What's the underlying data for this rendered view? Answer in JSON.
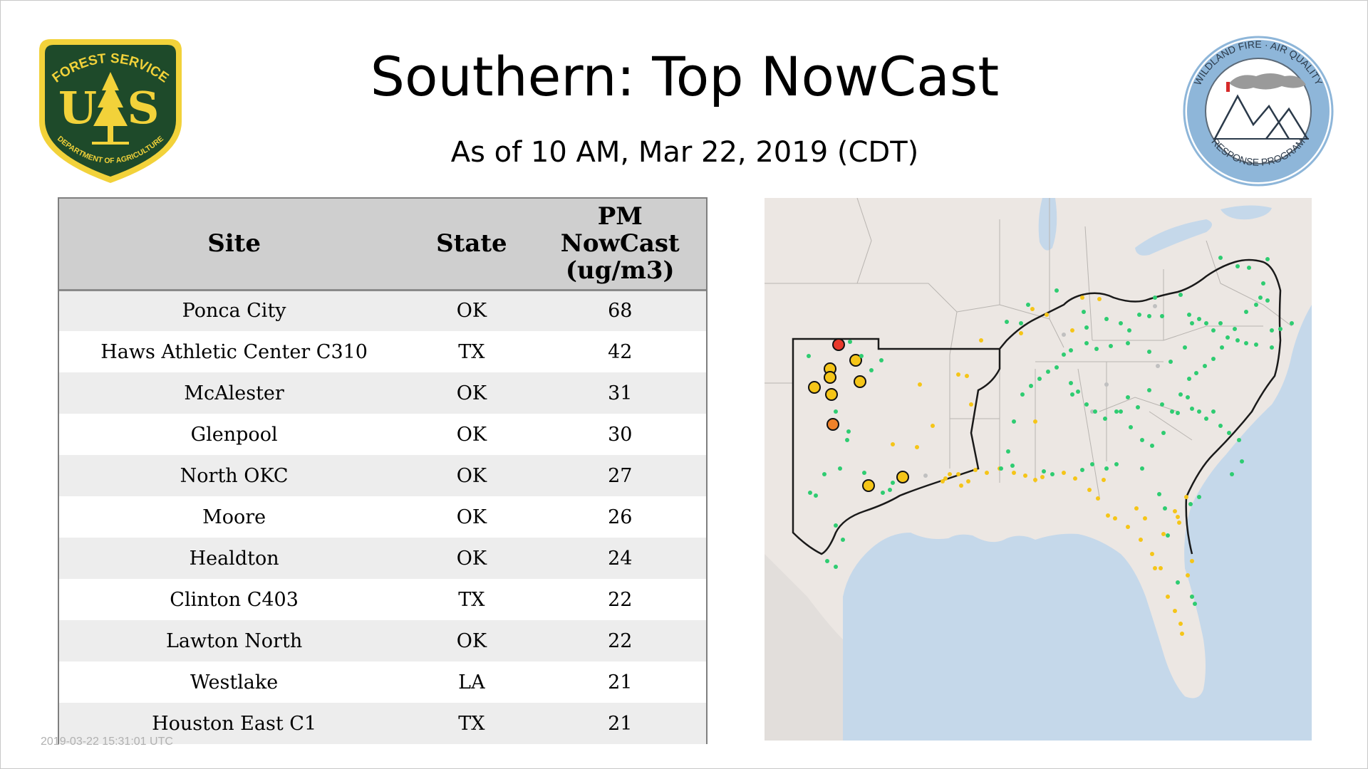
{
  "header": {
    "title": "Southern: Top NowCast",
    "subtitle": "As of 10 AM, Mar 22, 2019 (CDT)"
  },
  "logos": {
    "forest_service": {
      "top_text": "FOREST SERVICE",
      "bottom_text": "DEPARTMENT OF AGRICULTURE",
      "letters": "US"
    },
    "wildland_fire": {
      "ring_text_top": "WILDLAND FIRE · AIR QUALITY",
      "ring_text_bottom": "RESPONSE PROGRAM"
    }
  },
  "table": {
    "headers": {
      "site": "Site",
      "state": "State",
      "pm_line1": "PM",
      "pm_line2": "NowCast",
      "pm_line3": "(ug/m3)"
    },
    "rows": [
      {
        "site": "Ponca City",
        "state": "OK",
        "pm": "68"
      },
      {
        "site": "Haws Athletic Center C310",
        "state": "TX",
        "pm": "42"
      },
      {
        "site": "McAlester",
        "state": "OK",
        "pm": "31"
      },
      {
        "site": "Glenpool",
        "state": "OK",
        "pm": "30"
      },
      {
        "site": "North OKC",
        "state": "OK",
        "pm": "27"
      },
      {
        "site": "Moore",
        "state": "OK",
        "pm": "26"
      },
      {
        "site": "Healdton",
        "state": "OK",
        "pm": "24"
      },
      {
        "site": "Clinton C403",
        "state": "TX",
        "pm": "22"
      },
      {
        "site": "Lawton North",
        "state": "OK",
        "pm": "22"
      },
      {
        "site": "Westlake",
        "state": "LA",
        "pm": "21"
      },
      {
        "site": "Houston East C1",
        "state": "TX",
        "pm": "21"
      }
    ]
  },
  "footer": {
    "timestamp": "2019-03-22 15:31:01 UTC"
  },
  "colors": {
    "fs_green": "#1e4a2a",
    "fs_gold": "#f2d23a",
    "wf_blue": "#8eb6d9",
    "good": "#2ecc71",
    "moderate": "#f5c518",
    "usg": "#f0822a",
    "unhealthy": "#e8392b",
    "nodata": "#c0c0c0",
    "water": "#c5d8ea",
    "land": "#ece7e3"
  }
}
